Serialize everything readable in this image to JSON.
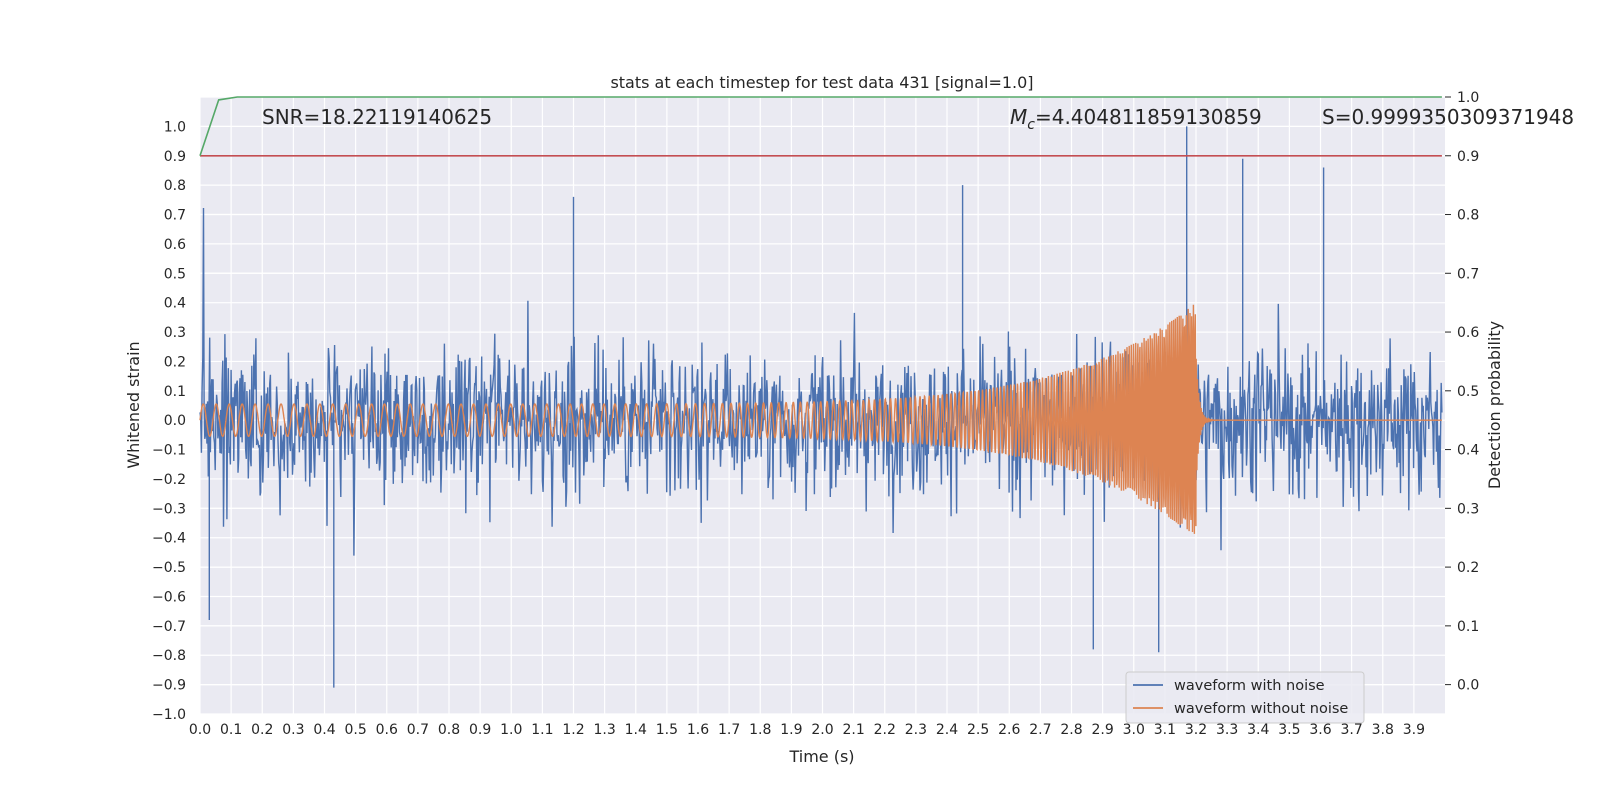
{
  "chart_data": {
    "type": "line",
    "title": "stats at each timestep for test data 431 [signal=1.0]",
    "xlabel": "Time (s)",
    "ylabel": "Whitened strain",
    "y2label": "Detection probability",
    "xlim": [
      0.0,
      4.0
    ],
    "ylim": [
      -1.0,
      1.1
    ],
    "y2lim": [
      -0.05,
      1.0
    ],
    "x_ticks": [
      "0.0",
      "0.1",
      "0.2",
      "0.3",
      "0.4",
      "0.5",
      "0.6",
      "0.7",
      "0.8",
      "0.9",
      "1.0",
      "1.1",
      "1.2",
      "1.3",
      "1.4",
      "1.5",
      "1.6",
      "1.7",
      "1.8",
      "1.9",
      "2.0",
      "2.1",
      "2.2",
      "2.3",
      "2.4",
      "2.5",
      "2.6",
      "2.7",
      "2.8",
      "2.9",
      "3.0",
      "3.1",
      "3.2",
      "3.3",
      "3.4",
      "3.5",
      "3.6",
      "3.7",
      "3.8",
      "3.9"
    ],
    "y_ticks": [
      "1.0",
      "0.9",
      "0.8",
      "0.7",
      "0.6",
      "0.5",
      "0.4",
      "0.3",
      "0.2",
      "0.1",
      "0.0",
      "−0.1",
      "−0.2",
      "−0.3",
      "−0.4",
      "−0.5",
      "−0.6",
      "−0.7",
      "−0.8",
      "−0.9",
      "−1.0"
    ],
    "y2_ticks": [
      "1.0",
      "0.9",
      "0.8",
      "0.7",
      "0.6",
      "0.5",
      "0.4",
      "0.3",
      "0.2",
      "0.1",
      "0.0"
    ],
    "grid": true,
    "legend_position": "lower-right",
    "annotations": {
      "snr": "SNR=18.22119140625",
      "mc_symbol": "M",
      "mc_sub": "c",
      "mc_value": "=4.404811859130859",
      "s": "S=0.9999350309371948"
    },
    "series": [
      {
        "name": "waveform with noise",
        "color": "#4c72b0",
        "axis": "left",
        "description_values": {
          "envelope_typical": 0.55,
          "peaks": [
            {
              "x": 0.43,
              "y": -0.91
            },
            {
              "x": 1.2,
              "y": 0.76
            },
            {
              "x": 2.45,
              "y": 0.8
            },
            {
              "x": 3.17,
              "y": 1.0
            },
            {
              "x": 3.35,
              "y": 0.89
            },
            {
              "x": 3.61,
              "y": 0.86
            },
            {
              "x": 2.87,
              "y": -0.78
            },
            {
              "x": 3.08,
              "y": -0.79
            },
            {
              "x": 0.03,
              "y": -0.68
            }
          ]
        }
      },
      {
        "name": "waveform without noise",
        "color": "#dd8452",
        "axis": "left",
        "chirp": {
          "t_start": 0.0,
          "t_merge": 3.2,
          "amp_start": 0.055,
          "amp_peak": 0.4,
          "freq_start": 24,
          "freq_end": 180
        }
      },
      {
        "name": "",
        "color": "#55a868",
        "axis": "right",
        "x": [
          0.0,
          0.06,
          0.12,
          0.2,
          0.5,
          1.0,
          2.0,
          3.0,
          3.99
        ],
        "y": [
          0.9,
          0.995,
          1.0,
          1.0,
          1.0,
          1.0,
          1.0,
          1.0,
          1.0
        ]
      },
      {
        "name": "",
        "color": "#c44e52",
        "axis": "right",
        "x": [
          0.0,
          3.99
        ],
        "y": [
          0.9,
          0.9
        ]
      }
    ]
  }
}
